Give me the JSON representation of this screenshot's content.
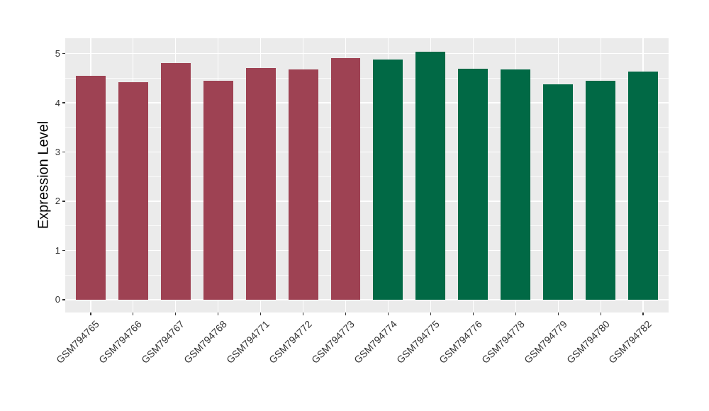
{
  "chart_data": {
    "type": "bar",
    "title": "",
    "xlabel": "",
    "ylabel": "Expression Level",
    "categories": [
      "GSM794765",
      "GSM794766",
      "GSM794767",
      "GSM794768",
      "GSM794771",
      "GSM794772",
      "GSM794773",
      "GSM794774",
      "GSM794775",
      "GSM794776",
      "GSM794778",
      "GSM794779",
      "GSM794780",
      "GSM794782"
    ],
    "values": [
      4.55,
      4.42,
      4.8,
      4.45,
      4.7,
      4.67,
      4.91,
      4.88,
      5.04,
      4.69,
      4.67,
      4.37,
      4.44,
      4.64
    ],
    "bar_groups": [
      "group1",
      "group1",
      "group1",
      "group1",
      "group1",
      "group1",
      "group1",
      "group2",
      "group2",
      "group2",
      "group2",
      "group2",
      "group2",
      "group2"
    ],
    "group_colors": {
      "group1": "#9E4253",
      "group2": "#016945"
    },
    "yticks": [
      "0",
      "1",
      "2",
      "3",
      "4",
      "5"
    ],
    "ytick_values": [
      0,
      1,
      2,
      3,
      4,
      5
    ],
    "minor_tick_values": [
      0.5,
      1.5,
      2.5,
      3.5,
      4.5
    ],
    "ylim": [
      -0.26,
      5.31
    ],
    "legend_position": "none",
    "grid": "on",
    "x_label_angle_deg": 45,
    "colors": {
      "panel_background": "#EBEBEB",
      "grid_line": "#FFFFFF",
      "tick_label_text": "#333333",
      "axis_title_text": "#000000",
      "tick_mark": "#333333",
      "figure_background": "#FFFFFF"
    }
  }
}
